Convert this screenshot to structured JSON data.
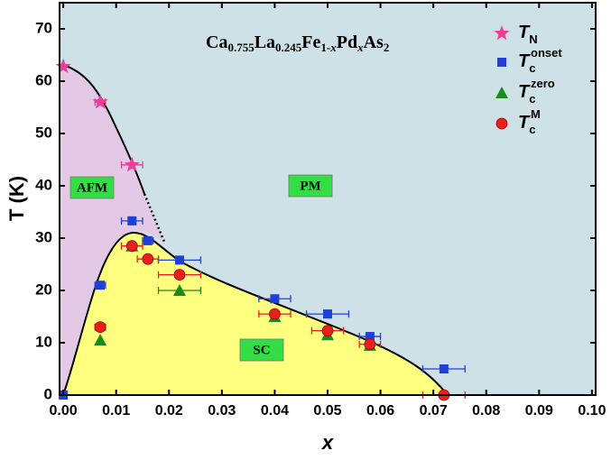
{
  "chart_data": {
    "type": "scatter",
    "title": [
      "Ca",
      "0.755",
      "La",
      "0.245",
      "Fe",
      "1-",
      "x",
      "Pd",
      "x",
      "As",
      "2"
    ],
    "xlabel": "x",
    "ylabel": "T (K)",
    "annotations": [
      "AFM",
      "PM",
      "SC"
    ],
    "region_colors": {
      "PM": "#cde1e7",
      "AFM": "#e4c9e6",
      "SC": "#ffff80",
      "label_box": "#33dd44"
    },
    "xlim": [
      -0.0007,
      0.1007
    ],
    "ylim": [
      0,
      75
    ],
    "xticks": [
      {
        "value": 0,
        "label": "0.00"
      },
      {
        "value": 0.01,
        "label": "0.01"
      },
      {
        "value": 0.02,
        "label": "0.02"
      },
      {
        "value": 0.03,
        "label": "0.03"
      },
      {
        "value": 0.04,
        "label": "0.04"
      },
      {
        "value": 0.05,
        "label": "0.05"
      },
      {
        "value": 0.06,
        "label": "0.06"
      },
      {
        "value": 0.07,
        "label": "0.07"
      },
      {
        "value": 0.08,
        "label": "0.08"
      },
      {
        "value": 0.09,
        "label": "0.09"
      },
      {
        "value": 0.1,
        "label": "0.10"
      }
    ],
    "yticks": [
      0,
      10,
      20,
      30,
      40,
      50,
      60,
      70
    ],
    "series": [
      {
        "name": [
          "T",
          "N",
          ""
        ],
        "marker": "star",
        "color": "#ee3d96",
        "x": [
          0,
          0.007,
          0.013
        ],
        "values": [
          62.8,
          56,
          44
        ],
        "x_errors": [
          null,
          0.001,
          0.002
        ]
      },
      {
        "name": [
          "T",
          "c",
          "onset"
        ],
        "marker": "square",
        "color": "#1f3fd8",
        "x": [
          0,
          0.007,
          0.013,
          0.016,
          0.022,
          0.04,
          0.05,
          0.058,
          0.072
        ],
        "values": [
          0,
          21,
          33.3,
          29.5,
          25.8,
          18.4,
          15.5,
          11.2,
          5
        ],
        "x_errors": [
          null,
          0.001,
          0.002,
          0.001,
          0.004,
          0.003,
          0.004,
          0.002,
          0.004
        ]
      },
      {
        "name": [
          "T",
          "c",
          "zero"
        ],
        "marker": "triangle",
        "color": "#1a8a1a",
        "x": [
          0.007,
          0.013,
          0.022,
          0.04,
          0.05,
          0.058
        ],
        "values": [
          10.5,
          28.5,
          20,
          15,
          11.5,
          9.5
        ],
        "x_errors": [
          null,
          null,
          0.004,
          null,
          null,
          null
        ]
      },
      {
        "name": [
          "T",
          "c",
          "M"
        ],
        "marker": "circle",
        "color": "#e8201a",
        "x": [
          0.007,
          0.013,
          0.016,
          0.022,
          0.04,
          0.05,
          0.058,
          0.072
        ],
        "values": [
          13,
          28.5,
          26,
          23,
          15.5,
          12.3,
          9.7,
          0
        ],
        "x_errors": [
          0.001,
          0.002,
          0.002,
          0.004,
          0.003,
          0.003,
          0.002,
          0.004
        ]
      }
    ]
  }
}
